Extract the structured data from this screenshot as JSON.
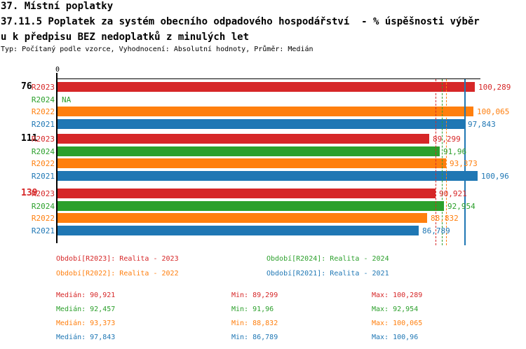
{
  "title": {
    "line1": "37. Místní poplatky",
    "line2": "37.11.5 Poplatek za systém obecního odpadového hospodářství  - % úspěšnosti výběr",
    "line3": "u k předpisu BEZ nedoplatků z minulých let",
    "meta": "Typ: Počítaný podle vzorce, Vyhodnocení: Absolutní hodnoty, Průměr: Medián"
  },
  "colors": {
    "R2023": "#d62728",
    "R2024": "#2ca02c",
    "R2022": "#ff7f0e",
    "R2021": "#1f77b4",
    "axis": "#000000",
    "highlight_label": "#d62728",
    "text": "#000000",
    "background": "#ffffff"
  },
  "chart_data": {
    "type": "bar",
    "orientation": "horizontal",
    "value_unit": "%",
    "axis": {
      "origin_tick_label": "0",
      "x_min": 0,
      "x_max": 101.7,
      "grid": false
    },
    "series": [
      {
        "id": "R2023",
        "name": "Realita - 2023",
        "color": "#d62728",
        "median": 90.921,
        "median_line_style": "dashed"
      },
      {
        "id": "R2024",
        "name": "Realita - 2024",
        "color": "#2ca02c",
        "median": 92.457,
        "median_line_style": "dashed"
      },
      {
        "id": "R2022",
        "name": "Realita - 2022",
        "color": "#ff7f0e",
        "median": 93.373,
        "median_line_style": "dashed"
      },
      {
        "id": "R2021",
        "name": "Realita - 2021",
        "color": "#1f77b4",
        "median": 97.843,
        "median_line_style": "solid"
      }
    ],
    "groups": [
      {
        "label": "76",
        "highlight": false,
        "values": [
          {
            "series": "R2023",
            "value": 100.289,
            "display": "100,289"
          },
          {
            "series": "R2024",
            "value": null,
            "display": "NA"
          },
          {
            "series": "R2022",
            "value": 100.065,
            "display": "100,065"
          },
          {
            "series": "R2021",
            "value": 97.843,
            "display": "97,843"
          }
        ]
      },
      {
        "label": "111",
        "highlight": false,
        "values": [
          {
            "series": "R2023",
            "value": 89.299,
            "display": "89,299"
          },
          {
            "series": "R2024",
            "value": 91.96,
            "display": "91,96"
          },
          {
            "series": "R2022",
            "value": 93.373,
            "display": "93,373"
          },
          {
            "series": "R2021",
            "value": 100.96,
            "display": "100,96"
          }
        ]
      },
      {
        "label": "139",
        "highlight": true,
        "values": [
          {
            "series": "R2023",
            "value": 90.921,
            "display": "90,921"
          },
          {
            "series": "R2024",
            "value": 92.954,
            "display": "92,954"
          },
          {
            "series": "R2022",
            "value": 88.832,
            "display": "88,832"
          },
          {
            "series": "R2021",
            "value": 86.789,
            "display": "86,789"
          }
        ]
      }
    ]
  },
  "legend": {
    "items": [
      {
        "series": "R2023",
        "text": "Období[R2023]: Realita - 2023"
      },
      {
        "series": "R2024",
        "text": "Období[R2024]: Realita - 2024"
      },
      {
        "series": "R2022",
        "text": "Období[R2022]: Realita - 2022"
      },
      {
        "series": "R2021",
        "text": "Období[R2021]: Realita - 2021"
      }
    ]
  },
  "stats": {
    "labels": {
      "median": "Medián",
      "min": "Min",
      "max": "Max"
    },
    "rows": [
      {
        "series": "R2023",
        "median": "90,921",
        "min": "89,299",
        "max": "100,289"
      },
      {
        "series": "R2024",
        "median": "92,457",
        "min": "91,96",
        "max": "92,954"
      },
      {
        "series": "R2022",
        "median": "93,373",
        "min": "88,832",
        "max": "100,065"
      },
      {
        "series": "R2021",
        "median": "97,843",
        "min": "86,789",
        "max": "100,96"
      }
    ]
  }
}
